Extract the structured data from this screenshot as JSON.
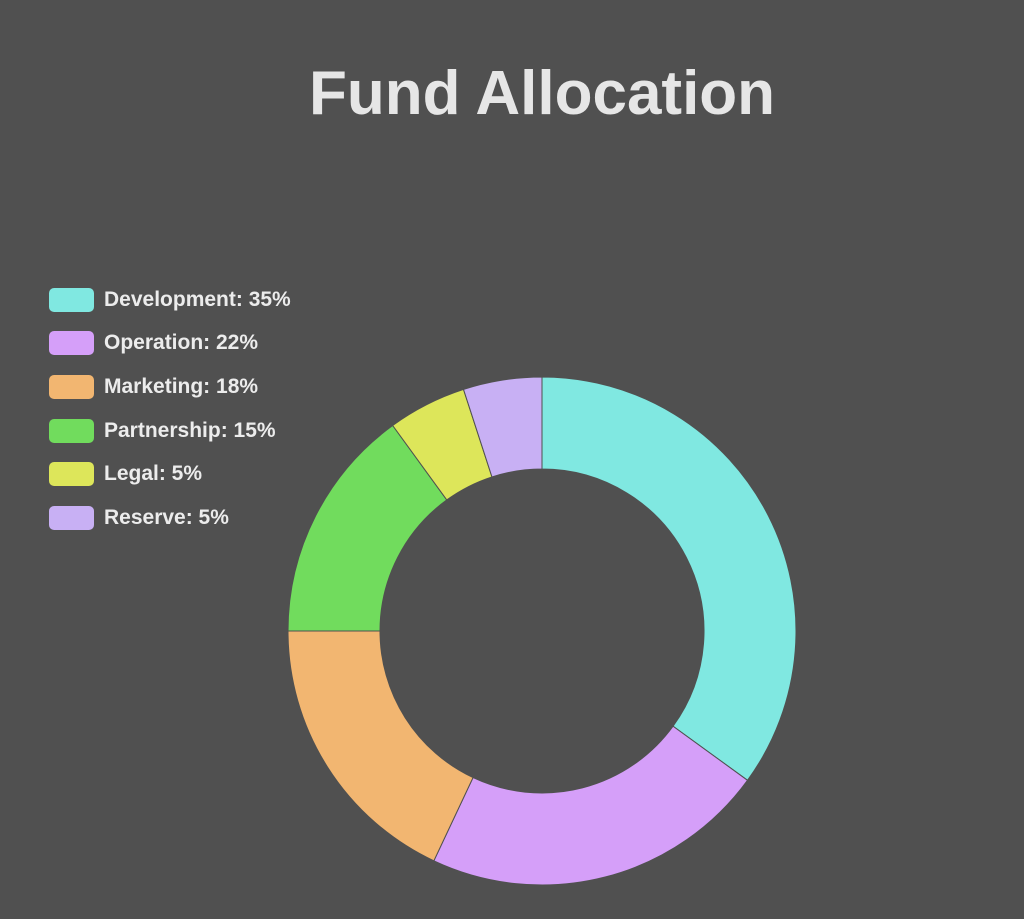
{
  "chart_data": {
    "type": "pie",
    "variant": "doughnut",
    "title": "Fund Allocation",
    "legend_position": "top-left",
    "slices": [
      {
        "label": "Development",
        "value": 35,
        "color": "#80e8e1"
      },
      {
        "label": "Operation",
        "value": 22,
        "color": "#d59ff9"
      },
      {
        "label": "Marketing",
        "value": 18,
        "color": "#f2b671"
      },
      {
        "label": "Partnership",
        "value": 15,
        "color": "#71dc5d"
      },
      {
        "label": "Legal",
        "value": 5,
        "color": "#dde65a"
      },
      {
        "label": "Reserve",
        "value": 5,
        "color": "#c8b0f4"
      }
    ],
    "legend_labels": [
      "Development: 35%",
      "Operation: 22%",
      "Marketing: 18%",
      "Partnership: 15%",
      "Legal: 5%",
      "Reserve: 5%"
    ]
  },
  "colors": {
    "background": "#505050",
    "title": "#e6e6e6",
    "legend_text": "#ececec"
  }
}
